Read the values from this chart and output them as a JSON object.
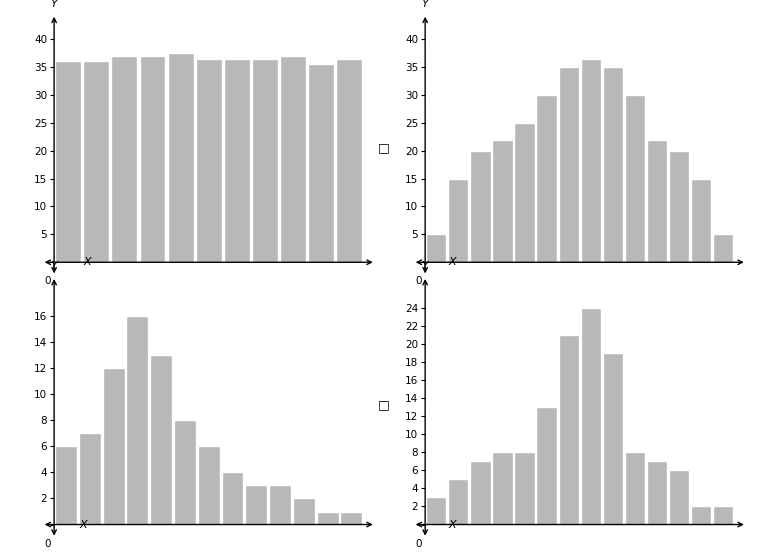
{
  "top_left": {
    "values": [
      36,
      36,
      37,
      37,
      37.5,
      36.5,
      36.5,
      36.5,
      37,
      35.5,
      36.5
    ],
    "ylim": [
      0,
      42
    ],
    "yticks": [
      0,
      5,
      10,
      15,
      20,
      25,
      30,
      35,
      40
    ],
    "bar_color": "#b8b8b8",
    "edge_color": "#ffffff"
  },
  "top_right": {
    "values": [
      5,
      15,
      20,
      22,
      25,
      30,
      35,
      36.5,
      35,
      30,
      22,
      20,
      15,
      5
    ],
    "ylim": [
      0,
      42
    ],
    "yticks": [
      0,
      5,
      10,
      15,
      20,
      25,
      30,
      35,
      40
    ],
    "bar_color": "#b8b8b8",
    "edge_color": "#ffffff"
  },
  "bottom_left": {
    "values": [
      6,
      7,
      12,
      16,
      13,
      8,
      6,
      4,
      3,
      3,
      2,
      1,
      1
    ],
    "ylim": [
      0,
      18
    ],
    "yticks": [
      0,
      2,
      4,
      6,
      8,
      10,
      12,
      14,
      16
    ],
    "bar_color": "#b8b8b8",
    "edge_color": "#ffffff"
  },
  "bottom_right": {
    "values": [
      3,
      5,
      7,
      8,
      8,
      13,
      21,
      24,
      19,
      8,
      7,
      6,
      2,
      2
    ],
    "ylim": [
      0,
      26
    ],
    "yticks": [
      0,
      2,
      4,
      6,
      8,
      10,
      12,
      14,
      16,
      18,
      20,
      22,
      24
    ],
    "bar_color": "#b8b8b8",
    "edge_color": "#ffffff"
  },
  "bg_color": "#ffffff",
  "label_fontsize": 8,
  "tick_fontsize": 7.5
}
